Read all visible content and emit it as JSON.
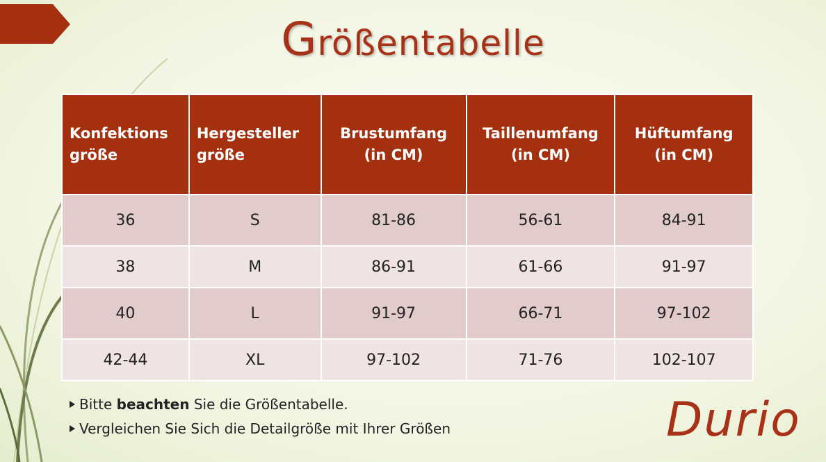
{
  "title": "Größentabelle",
  "table": {
    "headers": [
      [
        "Konfektions",
        "größe"
      ],
      [
        "Hergesteller",
        "größe"
      ],
      [
        "Brustumfang",
        "(in CM)"
      ],
      [
        "Taillenumfang",
        "(in CM)"
      ],
      [
        "Hüftumfang",
        "(in CM)"
      ]
    ],
    "rows": [
      [
        "36",
        "S",
        "81-86",
        "56-61",
        "84-91"
      ],
      [
        "38",
        "M",
        "86-91",
        "61-66",
        "91-97"
      ],
      [
        "40",
        "L",
        "91-97",
        "66-71",
        "97-102"
      ],
      [
        "42-44",
        "XL",
        "97-102",
        "71-76",
        "102-107"
      ]
    ]
  },
  "notes": [
    [
      "Bitte ",
      "beachten",
      " Sie die Größentabelle."
    ],
    [
      "Vergleichen Sie Sich die Detailgröße mit Ihrer Größen"
    ]
  ],
  "brand": "Durio"
}
